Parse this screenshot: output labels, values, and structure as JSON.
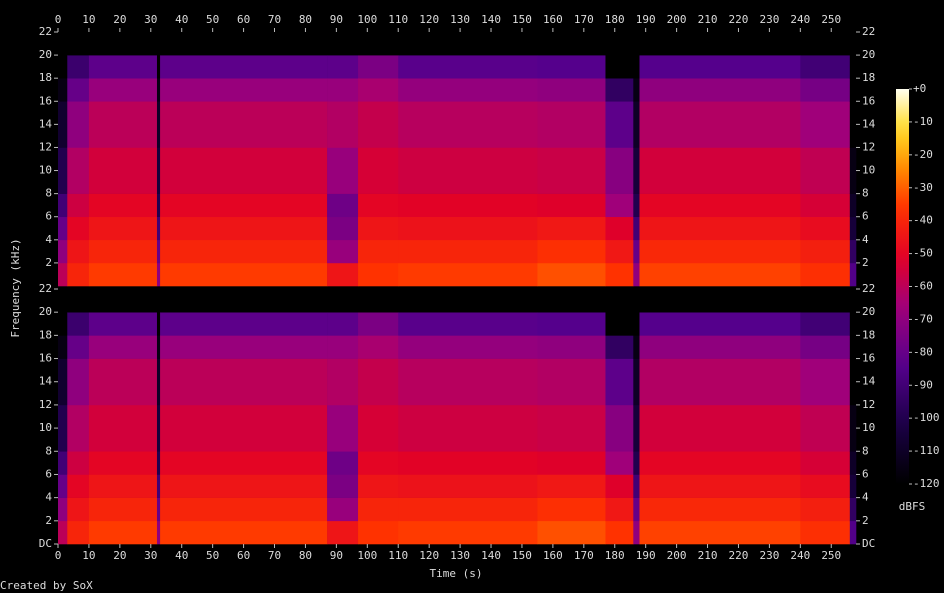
{
  "chart_data": {
    "type": "spectrogram",
    "x_label": "Time (s)",
    "y_label": "Frequency (kHz)",
    "footer": "Created by SoX",
    "xlim": [
      0,
      258
    ],
    "xticks": [
      0,
      10,
      20,
      30,
      40,
      50,
      60,
      70,
      80,
      90,
      100,
      110,
      120,
      130,
      140,
      150,
      160,
      170,
      180,
      190,
      200,
      210,
      220,
      230,
      240,
      250
    ],
    "channels": [
      {
        "ylim": [
          0,
          22
        ],
        "yticks": [
          2,
          4,
          6,
          8,
          10,
          12,
          14,
          16,
          18,
          20,
          22
        ],
        "time_edges": [
          0,
          3,
          10,
          32,
          33,
          87,
          97,
          110,
          155,
          177,
          186,
          188,
          240,
          256,
          258
        ],
        "freq_edges": [
          0,
          2,
          4,
          6,
          8,
          12,
          16,
          18,
          20,
          22
        ],
        "values": [
          [
            -60,
            -70,
            -80,
            -90,
            -100,
            -108,
            -115,
            -120,
            -120
          ],
          [
            -40,
            -45,
            -50,
            -56,
            -62,
            -70,
            -80,
            -92,
            -120
          ],
          [
            -35,
            -40,
            -45,
            -50,
            -55,
            -60,
            -68,
            -82,
            -120
          ],
          [
            -70,
            -80,
            -90,
            -100,
            -105,
            -110,
            -115,
            -120,
            -120
          ],
          [
            -35,
            -40,
            -45,
            -50,
            -55,
            -60,
            -68,
            -82,
            -120
          ],
          [
            -45,
            -68,
            -75,
            -78,
            -68,
            -62,
            -68,
            -82,
            -120
          ],
          [
            -36,
            -40,
            -45,
            -50,
            -54,
            -58,
            -64,
            -75,
            -120
          ],
          [
            -35,
            -40,
            -46,
            -51,
            -56,
            -61,
            -69,
            -83,
            -120
          ],
          [
            -32,
            -37,
            -44,
            -52,
            -57,
            -62,
            -70,
            -84,
            -120
          ],
          [
            -36,
            -44,
            -52,
            -66,
            -72,
            -82,
            -95,
            -120,
            -120
          ],
          [
            -70,
            -80,
            -90,
            -100,
            -105,
            -110,
            -115,
            -120,
            -120
          ],
          [
            -34,
            -39,
            -45,
            -50,
            -55,
            -62,
            -70,
            -84,
            -120
          ],
          [
            -37,
            -42,
            -48,
            -54,
            -59,
            -66,
            -76,
            -90,
            -120
          ],
          [
            -85,
            -95,
            -105,
            -110,
            -115,
            -120,
            -120,
            -120,
            -120
          ]
        ]
      },
      {
        "ylim": [
          0,
          22
        ],
        "yticks": [
          {
            "value": 0,
            "label": "DC"
          },
          2,
          4,
          6,
          8,
          10,
          12,
          14,
          16,
          18,
          20,
          22
        ],
        "time_edges": [
          0,
          3,
          10,
          32,
          33,
          87,
          97,
          110,
          155,
          177,
          186,
          188,
          240,
          256,
          258
        ],
        "freq_edges": [
          0,
          2,
          4,
          6,
          8,
          12,
          16,
          18,
          20,
          22
        ],
        "values": [
          [
            -60,
            -70,
            -80,
            -90,
            -100,
            -108,
            -115,
            -120,
            -120
          ],
          [
            -40,
            -45,
            -50,
            -56,
            -62,
            -70,
            -80,
            -92,
            -120
          ],
          [
            -35,
            -40,
            -45,
            -50,
            -55,
            -60,
            -68,
            -82,
            -120
          ],
          [
            -70,
            -80,
            -90,
            -100,
            -105,
            -110,
            -115,
            -120,
            -120
          ],
          [
            -35,
            -40,
            -45,
            -50,
            -55,
            -60,
            -68,
            -82,
            -120
          ],
          [
            -45,
            -68,
            -75,
            -78,
            -68,
            -62,
            -68,
            -82,
            -120
          ],
          [
            -36,
            -40,
            -45,
            -50,
            -54,
            -58,
            -64,
            -75,
            -120
          ],
          [
            -35,
            -40,
            -46,
            -51,
            -56,
            -61,
            -69,
            -83,
            -120
          ],
          [
            -32,
            -37,
            -44,
            -52,
            -57,
            -62,
            -70,
            -84,
            -120
          ],
          [
            -36,
            -44,
            -52,
            -66,
            -72,
            -82,
            -95,
            -120,
            -120
          ],
          [
            -70,
            -80,
            -90,
            -100,
            -105,
            -110,
            -115,
            -120,
            -120
          ],
          [
            -34,
            -39,
            -45,
            -50,
            -55,
            -62,
            -70,
            -84,
            -120
          ],
          [
            -37,
            -42,
            -48,
            -54,
            -59,
            -66,
            -76,
            -90,
            -120
          ],
          [
            -85,
            -95,
            -105,
            -110,
            -115,
            -120,
            -120,
            -120,
            -120
          ]
        ]
      }
    ],
    "colorbar": {
      "label": "dBFS",
      "lim": [
        -120,
        0
      ],
      "ticks": [
        {
          "value": 0,
          "label": "+0"
        },
        -10,
        -20,
        -30,
        -40,
        -50,
        -60,
        -70,
        -80,
        -90,
        -100,
        -110,
        -120
      ]
    }
  }
}
